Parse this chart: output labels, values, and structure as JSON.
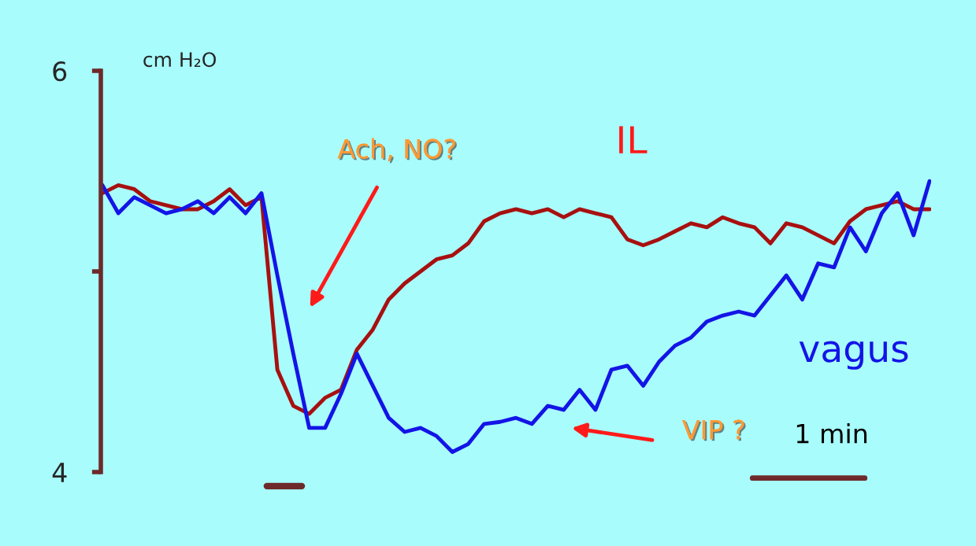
{
  "chart_data": {
    "type": "line",
    "ylabel": "cm H₂O",
    "categories": [
      null,
      null,
      null,
      null,
      null,
      null,
      null,
      null,
      null,
      null,
      null,
      null,
      null,
      null,
      null,
      null,
      null,
      null,
      null,
      null,
      null,
      null,
      null,
      null,
      null,
      null,
      null,
      null,
      null,
      null,
      null,
      null,
      null,
      null,
      null,
      null,
      null,
      null,
      null,
      null,
      null,
      null,
      null,
      null,
      null,
      null,
      null,
      null,
      null,
      null,
      null,
      null,
      null
    ],
    "series": [
      {
        "name": "IL",
        "color": "#a81010",
        "values": [
          5.39,
          5.43,
          5.41,
          5.35,
          5.33,
          5.31,
          5.31,
          5.35,
          5.41,
          5.33,
          5.37,
          4.51,
          4.33,
          4.29,
          4.37,
          4.41,
          4.61,
          4.71,
          4.86,
          4.94,
          5.0,
          5.06,
          5.08,
          5.14,
          5.25,
          5.29,
          5.31,
          5.29,
          5.31,
          5.27,
          5.31,
          5.29,
          5.27,
          5.16,
          5.13,
          5.16,
          5.2,
          5.24,
          5.22,
          5.27,
          5.24,
          5.22,
          5.14,
          5.24,
          5.22,
          5.18,
          5.14,
          5.25,
          5.31,
          5.33,
          5.35,
          5.31,
          5.31
        ]
      },
      {
        "name": "vagus",
        "color": "#1414e6",
        "values": [
          5.43,
          5.29,
          5.37,
          5.33,
          5.29,
          5.31,
          5.35,
          5.29,
          5.37,
          5.29,
          5.39,
          4.98,
          4.59,
          4.22,
          4.22,
          4.39,
          4.59,
          4.43,
          4.27,
          4.2,
          4.22,
          4.18,
          4.1,
          4.14,
          4.24,
          4.25,
          4.27,
          4.24,
          4.33,
          4.31,
          4.41,
          4.31,
          4.51,
          4.53,
          4.43,
          4.55,
          4.63,
          4.67,
          4.75,
          4.78,
          4.8,
          4.78,
          4.88,
          4.98,
          4.86,
          5.04,
          5.02,
          5.22,
          5.1,
          5.29,
          5.39,
          5.18,
          5.45
        ]
      }
    ],
    "ylim": [
      4,
      6
    ],
    "yticks": [
      4,
      {
        "value": 5,
        "label": null
      },
      6
    ],
    "tick_labels": "y",
    "grid": false,
    "legend": false,
    "line_style": "solid",
    "annotations": [
      "Ach, NO?",
      "VIP ?",
      "1 min"
    ]
  }
}
